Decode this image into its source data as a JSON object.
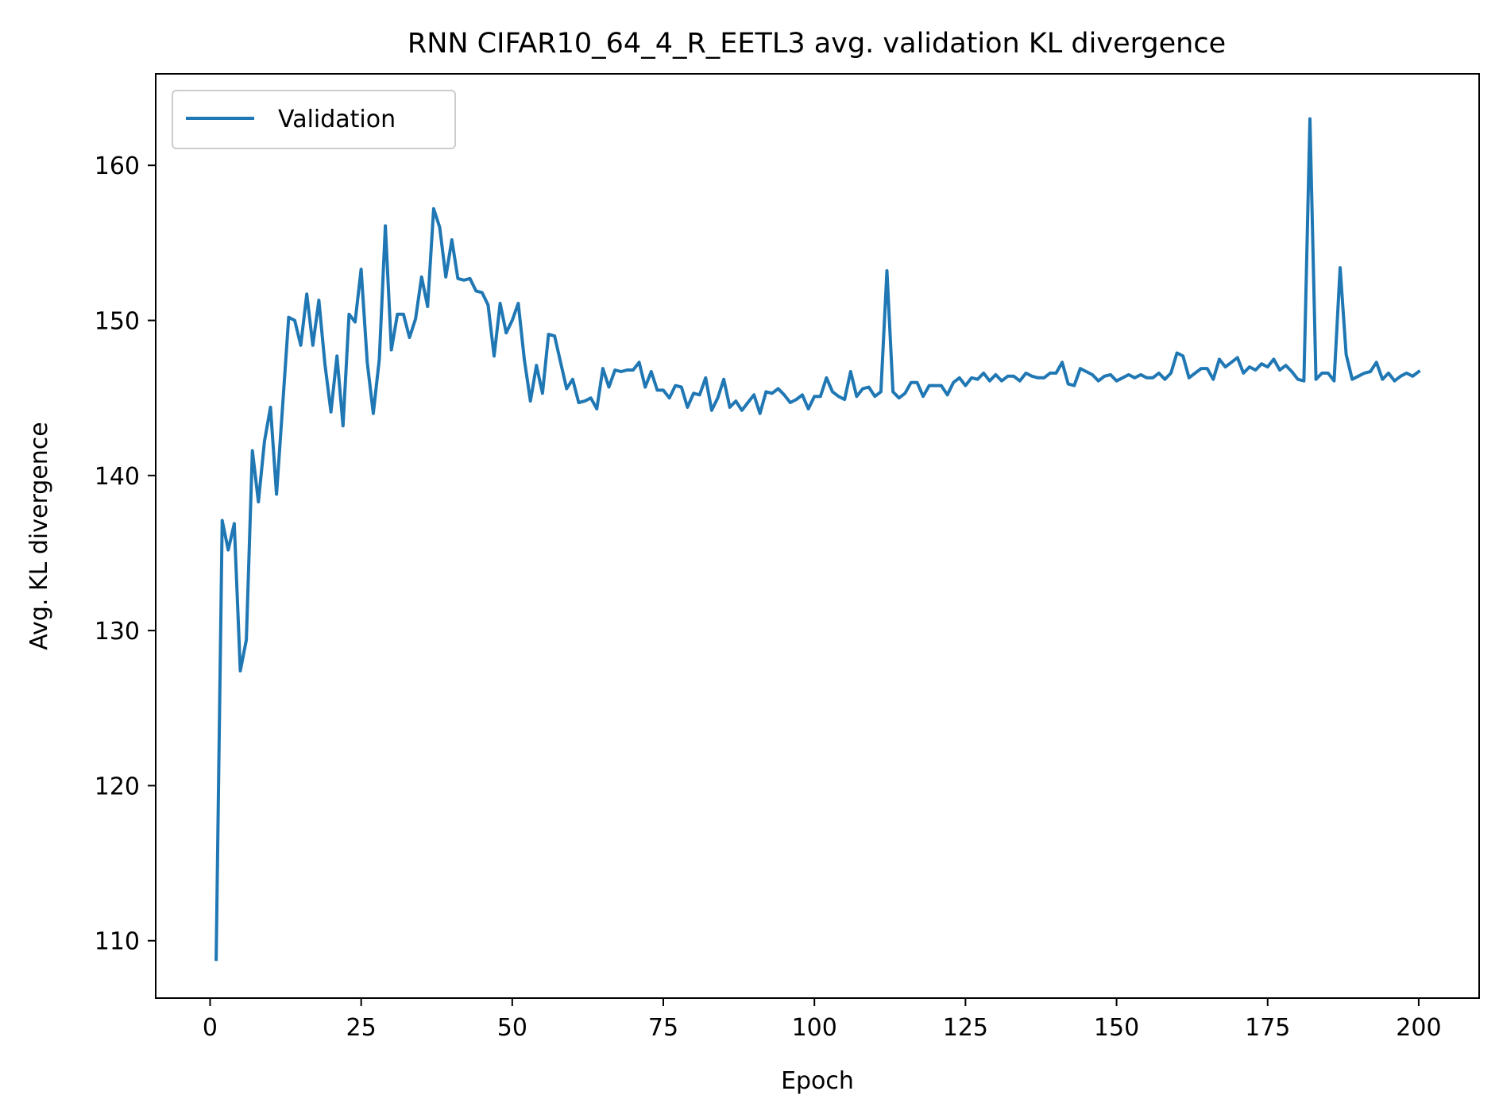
{
  "chart_data": {
    "type": "line",
    "title": "RNN CIFAR10_64_4_R_EETL3 avg. validation KL divergence",
    "xlabel": "Epoch",
    "ylabel": "Avg. KL divergence",
    "xlim": [
      -9,
      210
    ],
    "ylim": [
      106.3,
      165.9
    ],
    "xticks": [
      0,
      25,
      50,
      75,
      100,
      125,
      150,
      175,
      200
    ],
    "yticks": [
      110,
      120,
      130,
      140,
      150,
      160
    ],
    "grid": false,
    "legend_position": "top-left",
    "series": [
      {
        "name": "Validation",
        "color": "#1f77b4",
        "x": [
          1,
          2,
          3,
          4,
          5,
          6,
          7,
          8,
          9,
          10,
          11,
          12,
          13,
          14,
          15,
          16,
          17,
          18,
          19,
          20,
          21,
          22,
          23,
          24,
          25,
          26,
          27,
          28,
          29,
          30,
          31,
          32,
          33,
          34,
          35,
          36,
          37,
          38,
          39,
          40,
          41,
          42,
          43,
          44,
          45,
          46,
          47,
          48,
          49,
          50,
          51,
          52,
          53,
          54,
          55,
          56,
          57,
          58,
          59,
          60,
          61,
          62,
          63,
          64,
          65,
          66,
          67,
          68,
          69,
          70,
          71,
          72,
          73,
          74,
          75,
          76,
          77,
          78,
          79,
          80,
          81,
          82,
          83,
          84,
          85,
          86,
          87,
          88,
          89,
          90,
          91,
          92,
          93,
          94,
          95,
          96,
          97,
          98,
          99,
          100,
          101,
          102,
          103,
          104,
          105,
          106,
          107,
          108,
          109,
          110,
          111,
          112,
          113,
          114,
          115,
          116,
          117,
          118,
          119,
          120,
          121,
          122,
          123,
          124,
          125,
          126,
          127,
          128,
          129,
          130,
          131,
          132,
          133,
          134,
          135,
          136,
          137,
          138,
          139,
          140,
          141,
          142,
          143,
          144,
          145,
          146,
          147,
          148,
          149,
          150,
          151,
          152,
          153,
          154,
          155,
          156,
          157,
          158,
          159,
          160,
          161,
          162,
          163,
          164,
          165,
          166,
          167,
          168,
          169,
          170,
          171,
          172,
          173,
          174,
          175,
          176,
          177,
          178,
          179,
          180,
          181,
          182,
          183,
          184,
          185,
          186,
          187,
          188,
          189,
          190,
          191,
          192,
          193,
          194,
          195,
          196,
          197,
          198,
          199,
          200
        ],
        "values": [
          108.8,
          137.1,
          135.2,
          136.9,
          127.4,
          129.4,
          141.6,
          138.3,
          142.2,
          144.4,
          138.8,
          144.5,
          150.2,
          150.0,
          148.4,
          151.7,
          148.4,
          151.3,
          147.2,
          144.1,
          147.7,
          143.2,
          150.4,
          149.9,
          153.3,
          147.3,
          144.0,
          147.5,
          156.1,
          148.1,
          150.4,
          150.4,
          148.9,
          150.1,
          152.8,
          150.9,
          157.2,
          156.0,
          152.8,
          155.2,
          152.7,
          152.6,
          152.7,
          151.9,
          151.8,
          151.0,
          147.7,
          151.1,
          149.2,
          150.0,
          151.1,
          147.5,
          144.8,
          147.1,
          145.3,
          149.1,
          149.0,
          147.3,
          145.6,
          146.2,
          144.7,
          144.8,
          145.0,
          144.3,
          146.9,
          145.7,
          146.8,
          146.7,
          146.8,
          146.8,
          147.3,
          145.7,
          146.7,
          145.5,
          145.5,
          145.0,
          145.8,
          145.7,
          144.4,
          145.3,
          145.2,
          146.3,
          144.2,
          145.0,
          146.2,
          144.4,
          144.8,
          144.2,
          144.7,
          145.2,
          144.0,
          145.4,
          145.3,
          145.6,
          145.2,
          144.7,
          144.9,
          145.2,
          144.3,
          145.1,
          145.1,
          146.3,
          145.4,
          145.1,
          144.9,
          146.7,
          145.1,
          145.6,
          145.7,
          145.1,
          145.4,
          153.2,
          145.4,
          145.0,
          145.3,
          146.0,
          146.0,
          145.1,
          145.8,
          145.8,
          145.8,
          145.2,
          146.0,
          146.3,
          145.8,
          146.3,
          146.2,
          146.6,
          146.1,
          146.5,
          146.1,
          146.4,
          146.4,
          146.1,
          146.6,
          146.4,
          146.3,
          146.3,
          146.6,
          146.6,
          147.3,
          145.9,
          145.8,
          146.9,
          146.7,
          146.5,
          146.1,
          146.4,
          146.5,
          146.1,
          146.3,
          146.5,
          146.3,
          146.5,
          146.3,
          146.3,
          146.6,
          146.2,
          146.6,
          147.9,
          147.7,
          146.3,
          146.6,
          146.9,
          146.9,
          146.2,
          147.5,
          147.0,
          147.3,
          147.6,
          146.6,
          147.0,
          146.8,
          147.2,
          147.0,
          147.5,
          146.8,
          147.1,
          146.7,
          146.2,
          146.1,
          163.0,
          146.2,
          146.6,
          146.6,
          146.1,
          153.4,
          147.8,
          146.2,
          146.4,
          146.6,
          146.7,
          147.3,
          146.2,
          146.6,
          146.1,
          146.4,
          146.6,
          146.4,
          146.7
        ]
      }
    ]
  }
}
